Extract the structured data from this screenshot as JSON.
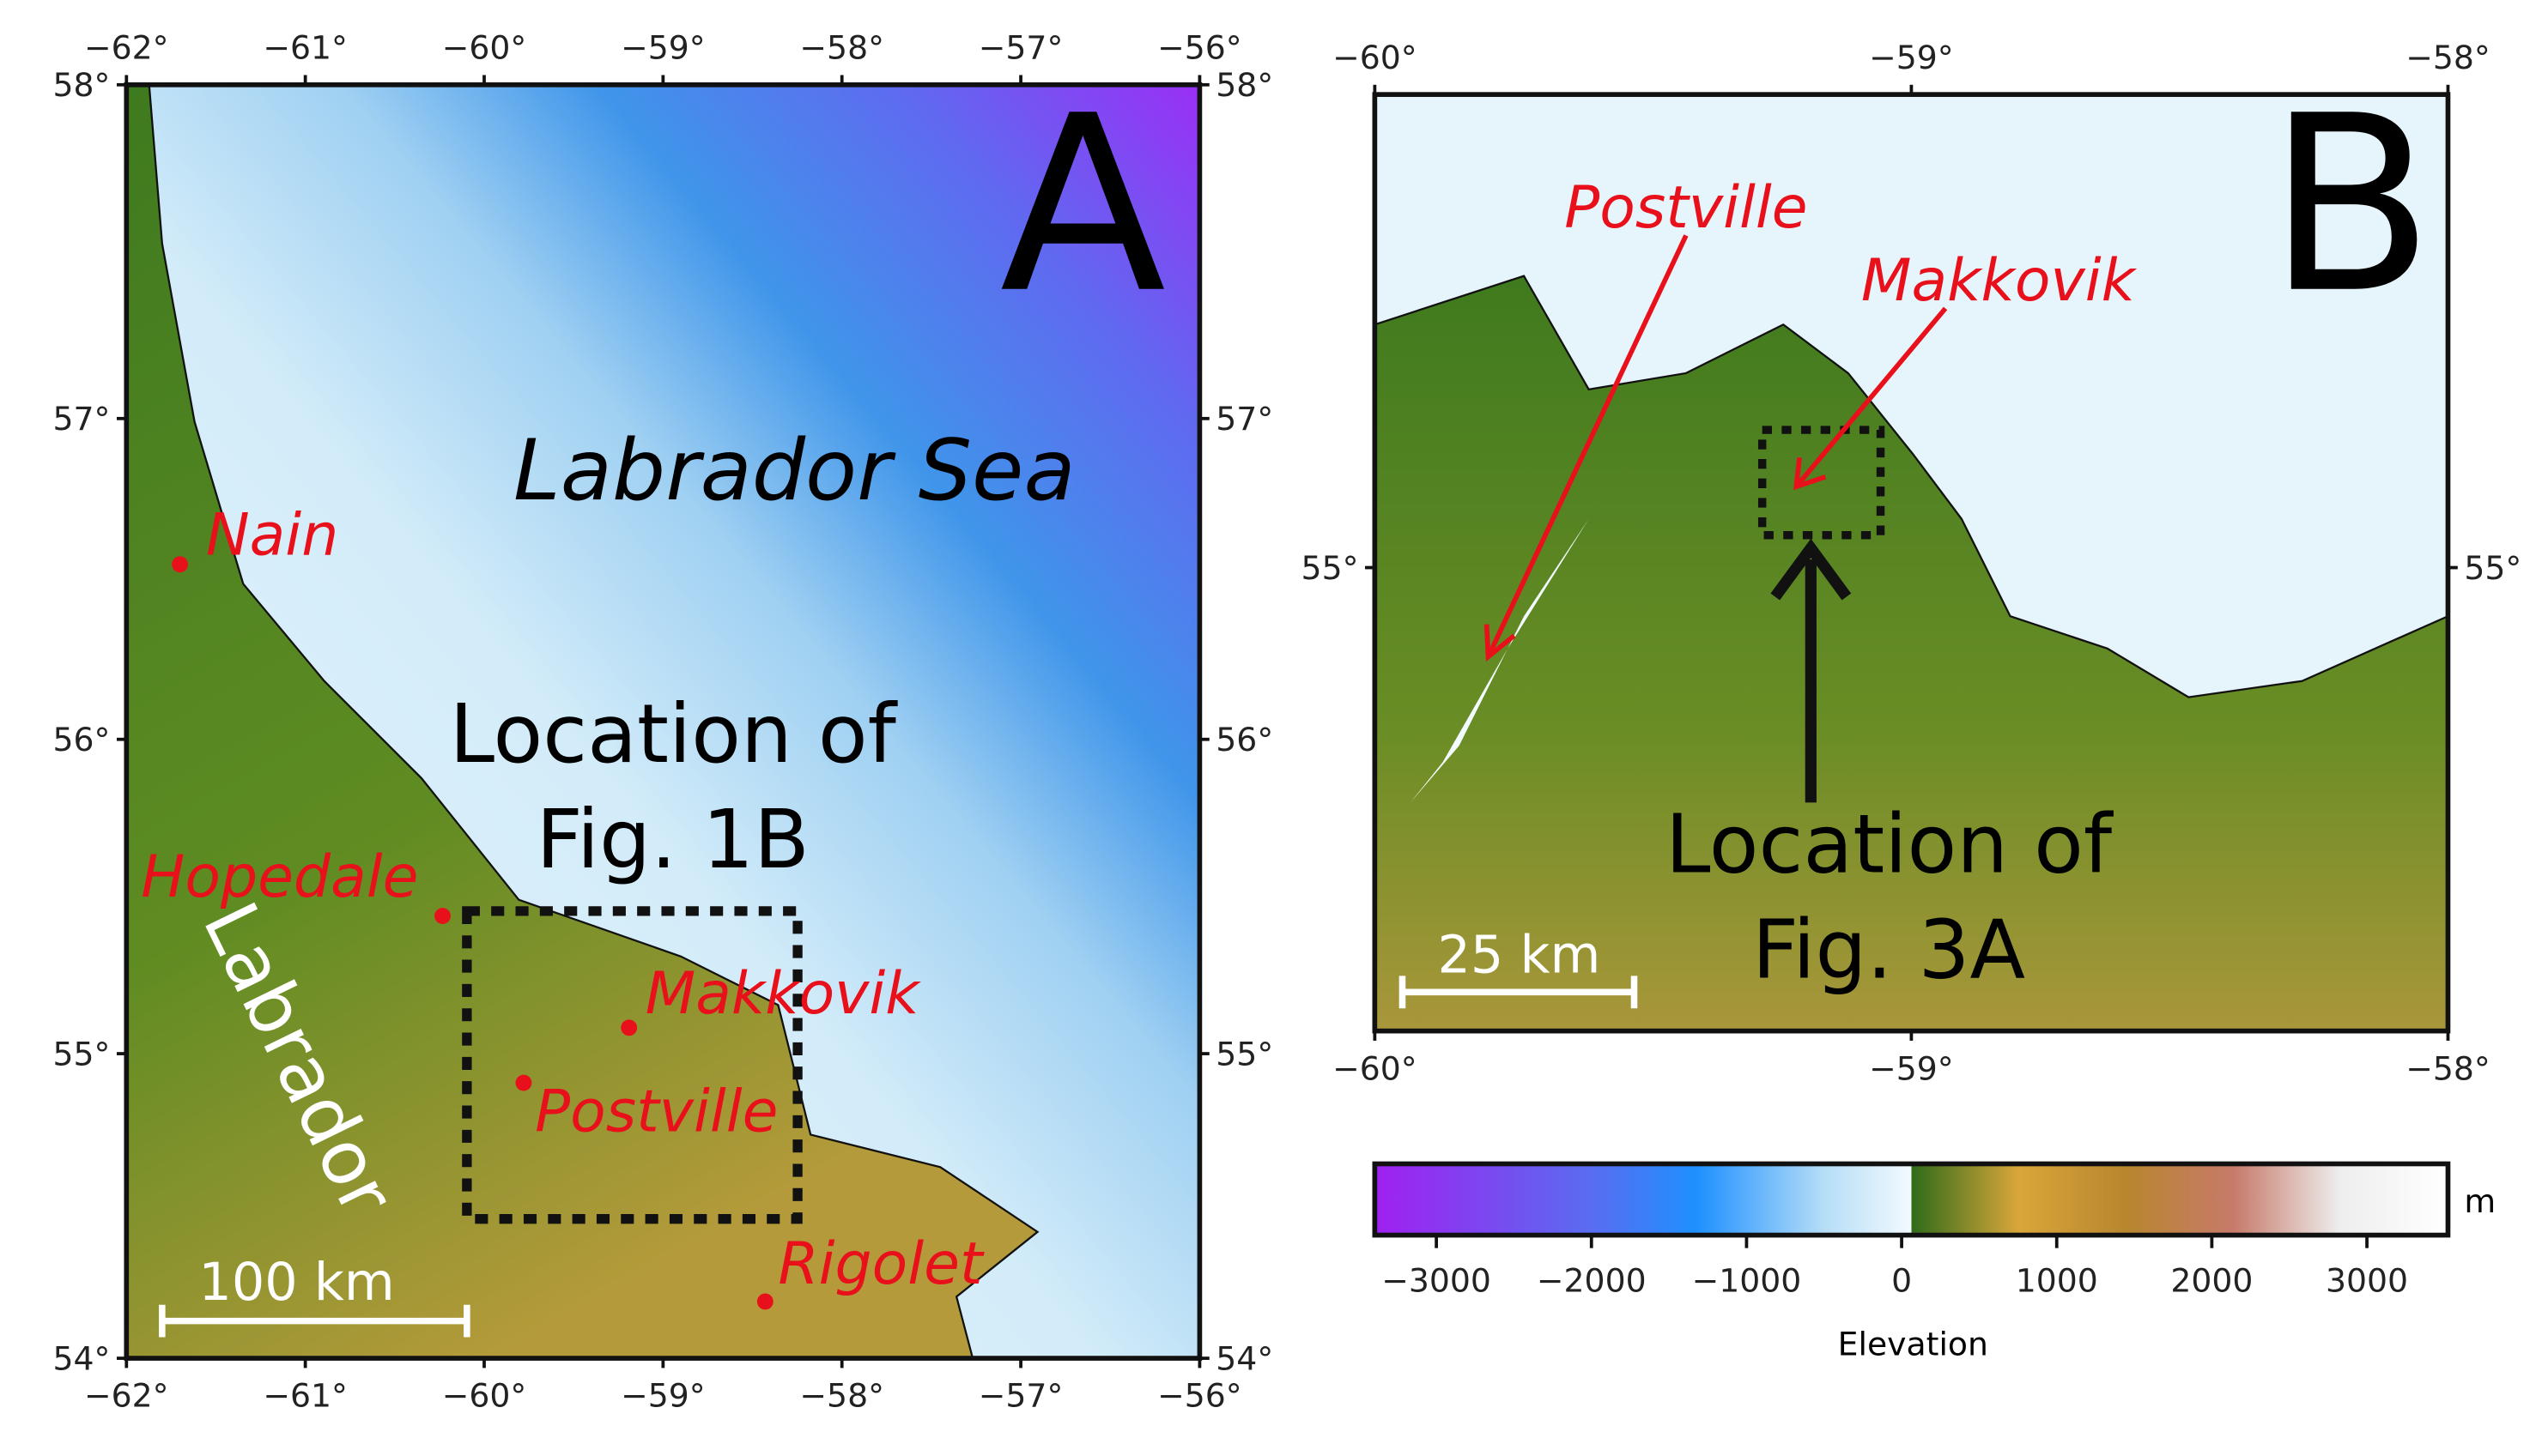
{
  "panel_a": {
    "letter": "A",
    "sea_label": "Labrador Sea",
    "region_label": "Labrador",
    "box_label": [
      "Location of",
      "Fig. 1B"
    ],
    "scale_bar": "100 km",
    "places": [
      "Nain",
      "Hopedale",
      "Makkovik",
      "Postville",
      "Rigolet"
    ],
    "lon_labels": [
      "−62°",
      "−61°",
      "−60°",
      "−59°",
      "−58°",
      "−57°",
      "−56°"
    ],
    "lat_labels": [
      "58°",
      "57°",
      "56°",
      "55°",
      "54°"
    ]
  },
  "panel_b": {
    "letter": "B",
    "box_label": [
      "Location of",
      "Fig. 3A"
    ],
    "scale_bar": "25 km",
    "places": [
      "Postville",
      "Makkovik"
    ],
    "lon_labels": [
      "−60°",
      "−59°",
      "−58°"
    ],
    "lat_labels": [
      "55°"
    ]
  },
  "colorbar": {
    "title": "Elevation",
    "unit": "m",
    "tick_labels": [
      "−3000",
      "−2000",
      "−1000",
      "0",
      "1000",
      "2000",
      "3000"
    ]
  }
}
